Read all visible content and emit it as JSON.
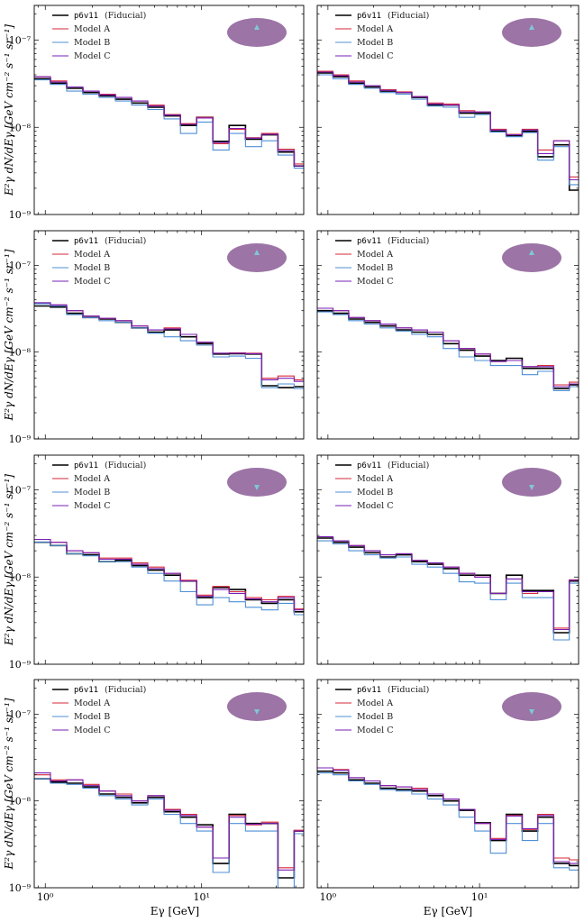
{
  "figure": {
    "ylabel": "E²γ dN/dEγ [GeV cm⁻² s⁻¹ sr⁻¹]",
    "xlabel": "Eγ [GeV]",
    "ytick_labels": [
      "10⁻⁷",
      "10⁻⁸",
      "10⁻⁹"
    ],
    "xtick_labels": [
      "10⁰",
      "10¹"
    ],
    "legend": {
      "fiducial_code": "p6v11",
      "fiducial_suffix": "(Fiducial)",
      "model_a": "Model A",
      "model_b": "Model B",
      "model_c": "Model C"
    },
    "colors": {
      "fiducial": "#000000",
      "model_a": "#d62a3a",
      "model_b": "#4f8fd6",
      "model_c": "#7a1fb5",
      "sky_ellipse": "#9c74a6",
      "roi_marker": "#7ec8d8"
    }
  },
  "chart_data": {
    "type": "line",
    "layout": "4x2 grid of step-histogram spectra",
    "x_scale": "log",
    "y_scale": "log",
    "xlim": [
      0.85,
      45
    ],
    "ylim": [
      1e-09,
      2.5e-07
    ],
    "bin_edges": [
      0.85,
      1.08,
      1.37,
      1.74,
      2.21,
      2.81,
      3.57,
      4.53,
      5.76,
      7.32,
      9.3,
      11.8,
      15.0,
      19.1,
      24.2,
      30.8,
      39.1,
      45
    ],
    "panels": [
      {
        "roi": "upper-center",
        "series": [
          {
            "name": "p6v11 (Fiducial)",
            "values": [
              3.6e-08,
              3.2e-08,
              2.8e-08,
              2.5e-08,
              2.3e-08,
              2.1e-08,
              1.9e-08,
              1.7e-08,
              1.35e-08,
              1.05e-08,
              1.3e-08,
              6.9e-09,
              1.05e-08,
              7.3e-09,
              8.2e-09,
              5.2e-09,
              3.6e-09
            ]
          },
          {
            "name": "Model A",
            "values": [
              3.8e-08,
              3.4e-08,
              2.9e-08,
              2.6e-08,
              2.4e-08,
              2.2e-08,
              2e-08,
              1.8e-08,
              1.4e-08,
              1.1e-08,
              1.3e-08,
              6.5e-09,
              9.5e-09,
              7.6e-09,
              8.5e-09,
              5.6e-09,
              3.8e-09
            ]
          },
          {
            "name": "Model B",
            "values": [
              3.5e-08,
              3.1e-08,
              2.6e-08,
              2.4e-08,
              2.2e-08,
              2e-08,
              1.8e-08,
              1.6e-08,
              1.25e-08,
              8.5e-09,
              1.15e-08,
              5.5e-09,
              8.5e-09,
              6e-09,
              7e-09,
              4.8e-09,
              3.4e-09
            ]
          },
          {
            "name": "Model C",
            "values": [
              3.8e-08,
              3.3e-08,
              2.9e-08,
              2.6e-08,
              2.35e-08,
              2.2e-08,
              2e-08,
              1.75e-08,
              1.38e-08,
              1.08e-08,
              1.28e-08,
              6.7e-09,
              9.7e-09,
              7.5e-09,
              8.3e-09,
              5.4e-09,
              3.6e-09
            ]
          }
        ]
      },
      {
        "roi": "upper-center",
        "series": [
          {
            "name": "p6v11 (Fiducial)",
            "values": [
              4.2e-08,
              3.8e-08,
              3.2e-08,
              2.9e-08,
              2.6e-08,
              2.5e-08,
              2.2e-08,
              1.8e-08,
              1.8e-08,
              1.45e-08,
              1.45e-08,
              9e-09,
              8e-09,
              9e-09,
              4.6e-09,
              6.3e-09,
              1.9e-09
            ]
          },
          {
            "name": "Model A",
            "values": [
              4.4e-08,
              4e-08,
              3.4e-08,
              3e-08,
              2.7e-08,
              2.55e-08,
              2.25e-08,
              1.9e-08,
              1.85e-08,
              1.55e-08,
              1.5e-08,
              9.5e-09,
              8.3e-09,
              9.5e-09,
              5.5e-09,
              7e-09,
              2.7e-09
            ]
          },
          {
            "name": "Model B",
            "values": [
              4e-08,
              3.6e-08,
              3.1e-08,
              2.8e-08,
              2.5e-08,
              2.4e-08,
              2.1e-08,
              1.75e-08,
              1.7e-08,
              1.3e-08,
              1.4e-08,
              8.8e-09,
              7.8e-09,
              8.7e-09,
              4.2e-09,
              6e-09,
              2.2e-09
            ]
          },
          {
            "name": "Model C",
            "values": [
              4.3e-08,
              3.9e-08,
              3.3e-08,
              3e-08,
              2.65e-08,
              2.5e-08,
              2.25e-08,
              1.85e-08,
              1.8e-08,
              1.5e-08,
              1.5e-08,
              9.3e-09,
              8.2e-09,
              9.3e-09,
              5e-09,
              7e-09,
              2.5e-09
            ]
          }
        ]
      },
      {
        "roi": "upper-center",
        "series": [
          {
            "name": "p6v11 (Fiducial)",
            "values": [
              3.4e-08,
              3.3e-08,
              2.8e-08,
              2.5e-08,
              2.4e-08,
              2.2e-08,
              1.9e-08,
              1.7e-08,
              1.8e-08,
              1.5e-08,
              1.25e-08,
              9.5e-09,
              9.6e-09,
              9.5e-09,
              4.1e-09,
              3.9e-09,
              4e-09
            ]
          },
          {
            "name": "Model A",
            "values": [
              3.7e-08,
              3.5e-08,
              3e-08,
              2.6e-08,
              2.45e-08,
              2.3e-08,
              2e-08,
              1.8e-08,
              1.9e-08,
              1.6e-08,
              1.3e-08,
              9.7e-09,
              9.8e-09,
              9.7e-09,
              5e-09,
              5.3e-09,
              4.8e-09
            ]
          },
          {
            "name": "Model B",
            "values": [
              3.6e-08,
              3.4e-08,
              2.7e-08,
              2.5e-08,
              2.3e-08,
              2.2e-08,
              1.9e-08,
              1.65e-08,
              1.5e-08,
              1.35e-08,
              1.2e-08,
              8.8e-09,
              9e-09,
              8.5e-09,
              3.9e-09,
              4.3e-09,
              3.8e-09
            ]
          },
          {
            "name": "Model C",
            "values": [
              3.7e-08,
              3.5e-08,
              3e-08,
              2.6e-08,
              2.45e-08,
              2.3e-08,
              2e-08,
              1.8e-08,
              1.85e-08,
              1.6e-08,
              1.3e-08,
              9.7e-09,
              9.7e-09,
              9.6e-09,
              4.8e-09,
              5e-09,
              4.6e-09
            ]
          }
        ]
      },
      {
        "roi": "upper-center",
        "series": [
          {
            "name": "p6v11 (Fiducial)",
            "values": [
              3e-08,
              2.8e-08,
              2.4e-08,
              2.2e-08,
              2e-08,
              1.8e-08,
              1.7e-08,
              1.6e-08,
              1.25e-08,
              1.05e-08,
              9e-09,
              8e-09,
              8.5e-09,
              6.5e-09,
              6.5e-09,
              3.8e-09,
              4.2e-09
            ]
          },
          {
            "name": "Model A",
            "values": [
              3.2e-08,
              3e-08,
              2.5e-08,
              2.3e-08,
              2.1e-08,
              1.9e-08,
              1.8e-08,
              1.7e-08,
              1.35e-08,
              1.1e-08,
              9.5e-09,
              7.8e-09,
              8e-09,
              6.8e-09,
              7e-09,
              4.2e-09,
              4.5e-09
            ]
          },
          {
            "name": "Model B",
            "values": [
              2.9e-08,
              2.7e-08,
              2.3e-08,
              2.1e-08,
              1.9e-08,
              1.75e-08,
              1.6e-08,
              1.5e-08,
              1.1e-08,
              8.8e-09,
              8e-09,
              7e-09,
              7e-09,
              5.5e-09,
              6e-09,
              3.6e-09,
              4e-09
            ]
          },
          {
            "name": "Model C",
            "values": [
              3.2e-08,
              3e-08,
              2.5e-08,
              2.3e-08,
              2.1e-08,
              1.9e-08,
              1.8e-08,
              1.7e-08,
              1.35e-08,
              1.1e-08,
              9.5e-09,
              7.8e-09,
              8e-09,
              6.8e-09,
              6.8e-09,
              4e-09,
              4.3e-09
            ]
          }
        ]
      },
      {
        "roi": "lower-center",
        "series": [
          {
            "name": "p6v11 (Fiducial)",
            "values": [
              2.5e-08,
              2.3e-08,
              1.85e-08,
              1.8e-08,
              1.5e-08,
              1.55e-08,
              1.35e-08,
              1.2e-08,
              1.05e-08,
              9e-09,
              5.8e-09,
              7.6e-09,
              7.2e-09,
              5.5e-09,
              5e-09,
              5.5e-09,
              4e-09
            ]
          },
          {
            "name": "Model A",
            "values": [
              2.7e-08,
              2.5e-08,
              2e-08,
              1.9e-08,
              1.65e-08,
              1.65e-08,
              1.45e-08,
              1.3e-08,
              1.1e-08,
              9.2e-09,
              6.2e-09,
              7.8e-09,
              6.8e-09,
              5.8e-09,
              5.5e-09,
              6e-09,
              4.3e-09
            ]
          },
          {
            "name": "Model B",
            "values": [
              2.5e-08,
              2.3e-08,
              1.85e-08,
              1.75e-08,
              1.5e-08,
              1.5e-08,
              1.3e-08,
              1.1e-08,
              9e-09,
              6.8e-09,
              4.8e-09,
              5.8e-09,
              5.2e-09,
              4.5e-09,
              4.2e-09,
              5e-09,
              3.7e-09
            ]
          },
          {
            "name": "Model C",
            "values": [
              2.7e-08,
              2.5e-08,
              2e-08,
              1.9e-08,
              1.6e-08,
              1.6e-08,
              1.4e-08,
              1.25e-08,
              1.1e-08,
              9e-09,
              6e-09,
              7.2e-09,
              6.5e-09,
              5.6e-09,
              5.2e-09,
              5.8e-09,
              4.2e-09
            ]
          }
        ]
      },
      {
        "roi": "lower-center",
        "series": [
          {
            "name": "p6v11 (Fiducial)",
            "values": [
              2.8e-08,
              2.5e-08,
              2.2e-08,
              1.9e-08,
              1.7e-08,
              1.8e-08,
              1.5e-08,
              1.4e-08,
              1.25e-08,
              1.05e-08,
              1.05e-08,
              6.5e-09,
              1.05e-08,
              7e-09,
              7e-09,
              2.3e-09,
              9e-09
            ]
          },
          {
            "name": "Model A",
            "values": [
              2.9e-08,
              2.6e-08,
              2.3e-08,
              2e-08,
              1.8e-08,
              1.85e-08,
              1.55e-08,
              1.45e-08,
              1.3e-08,
              1.1e-08,
              1e-08,
              6.5e-09,
              9.5e-09,
              6.5e-09,
              6.8e-09,
              2.6e-09,
              9.3e-09
            ]
          },
          {
            "name": "Model B",
            "values": [
              2.6e-08,
              2.4e-08,
              2e-08,
              1.8e-08,
              1.65e-08,
              1.7e-08,
              1.4e-08,
              1.3e-08,
              1.1e-08,
              8.8e-09,
              8.5e-09,
              5.5e-09,
              8.5e-09,
              5.8e-09,
              5.8e-09,
              1.9e-09,
              8.5e-09
            ]
          },
          {
            "name": "Model C",
            "values": [
              2.9e-08,
              2.6e-08,
              2.3e-08,
              2e-08,
              1.8e-08,
              1.85e-08,
              1.55e-08,
              1.45e-08,
              1.3e-08,
              1.1e-08,
              1e-08,
              6.5e-09,
              9.5e-09,
              6.8e-09,
              6.8e-09,
              2.5e-09,
              9.2e-09
            ]
          }
        ]
      },
      {
        "roi": "lower-center",
        "series": [
          {
            "name": "p6v11 (Fiducial)",
            "values": [
              1.8e-08,
              1.65e-08,
              1.6e-08,
              1.45e-08,
              1.2e-08,
              1.1e-08,
              9.5e-09,
              1.1e-08,
              7.5e-09,
              6.5e-09,
              5.3e-09,
              1.9e-09,
              7e-09,
              5.5e-09,
              5.5e-09,
              1.3e-09,
              4.5e-09
            ]
          },
          {
            "name": "Model A",
            "values": [
              2e-08,
              1.75e-08,
              1.75e-08,
              1.55e-08,
              1.3e-08,
              1.2e-08,
              1e-08,
              1.15e-08,
              8e-09,
              7e-09,
              5e-09,
              2.2e-09,
              6.8e-09,
              5.3e-09,
              5.7e-09,
              1.7e-09,
              4.6e-09
            ]
          },
          {
            "name": "Model B",
            "values": [
              1.8e-08,
              1.6e-08,
              1.55e-08,
              1.4e-08,
              1.15e-08,
              1.05e-08,
              9e-09,
              1.05e-08,
              7e-09,
              5.5e-09,
              4.5e-09,
              1.5e-09,
              5.5e-09,
              4.5e-09,
              4.5e-09,
              9.5e-10,
              4.2e-09
            ]
          },
          {
            "name": "Model C",
            "values": [
              2.1e-08,
              1.7e-08,
              1.75e-08,
              1.5e-08,
              1.3e-08,
              1.15e-08,
              1e-08,
              1.15e-08,
              7.8e-09,
              6.8e-09,
              5e-09,
              2.2e-09,
              6.5e-09,
              5.4e-09,
              5.5e-09,
              1.6e-09,
              4.5e-09
            ]
          }
        ]
      },
      {
        "roi": "lower-center",
        "series": [
          {
            "name": "p6v11 (Fiducial)",
            "values": [
              2.2e-08,
              2.1e-08,
              1.75e-08,
              1.6e-08,
              1.4e-08,
              1.35e-08,
              1.3e-08,
              1.15e-08,
              1e-08,
              7.8e-09,
              5.6e-09,
              3.5e-09,
              7e-09,
              4.5e-09,
              6.5e-09,
              1.9e-09,
              1.8e-09
            ]
          },
          {
            "name": "Model A",
            "values": [
              2.4e-08,
              2.3e-08,
              1.85e-08,
              1.7e-08,
              1.5e-08,
              1.45e-08,
              1.4e-08,
              1.2e-08,
              1.05e-08,
              8e-09,
              5.5e-09,
              3.7e-09,
              6.8e-09,
              4.7e-09,
              7e-09,
              2.2e-09,
              2.1e-09
            ]
          },
          {
            "name": "Model B",
            "values": [
              2.1e-08,
              2e-08,
              1.7e-08,
              1.55e-08,
              1.35e-08,
              1.3e-08,
              1.2e-08,
              1.05e-08,
              9e-09,
              6.5e-09,
              4.5e-09,
              2.5e-09,
              5.5e-09,
              3.5e-09,
              5.5e-09,
              1.7e-09,
              1.6e-09
            ]
          },
          {
            "name": "Model C",
            "values": [
              2.4e-08,
              2.25e-08,
              1.85e-08,
              1.7e-08,
              1.5e-08,
              1.45e-08,
              1.35e-08,
              1.2e-08,
              1.05e-08,
              8e-09,
              5.5e-09,
              3.6e-09,
              6.7e-09,
              4.8e-09,
              6.8e-09,
              2e-09,
              1.9e-09
            ]
          }
        ]
      }
    ]
  }
}
